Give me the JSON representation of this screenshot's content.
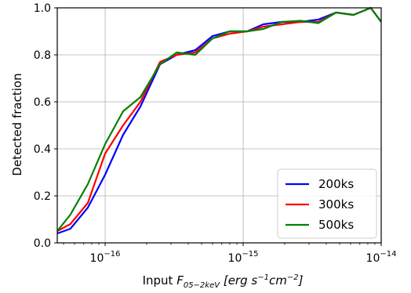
{
  "chart_data": {
    "type": "line",
    "xlabel_prefix": "Input ",
    "xlabel_var": "F",
    "xlabel_sub": "05−2keV",
    "xlabel_units": " [erg s",
    "xlabel_exp1": "−1",
    "xlabel_mid": "cm",
    "xlabel_exp2": "−2",
    "xlabel_end": "]",
    "ylabel": "Detected fraction",
    "xscale": "log",
    "xlim": [
      4.5e-17,
      1e-14
    ],
    "ylim": [
      0,
      1.0
    ],
    "grid": true,
    "legend_position": "lower-right",
    "xticks": [
      {
        "value": 1e-16,
        "base": "10",
        "exp": "−16"
      },
      {
        "value": 1e-15,
        "base": "10",
        "exp": "−15"
      },
      {
        "value": 1e-14,
        "base": "10",
        "exp": "−14"
      }
    ],
    "yticks": [
      {
        "value": 0.0,
        "label": "0.0"
      },
      {
        "value": 0.2,
        "label": "0.2"
      },
      {
        "value": 0.4,
        "label": "0.4"
      },
      {
        "value": 0.6,
        "label": "0.6"
      },
      {
        "value": 0.8,
        "label": "0.8"
      },
      {
        "value": 1.0,
        "label": "1.0"
      }
    ],
    "series": [
      {
        "name": "200ks",
        "color": "#0000ff",
        "x": [
          4.5e-17,
          5.6e-17,
          7.5e-17,
          1e-16,
          1.35e-16,
          1.8e-16,
          2.5e-16,
          3.3e-16,
          4.5e-16,
          6e-16,
          8e-16,
          1.07e-15,
          1.4e-15,
          1.9e-15,
          2.6e-15,
          3.5e-15,
          4.7e-15,
          6.3e-15,
          8.4e-15,
          1e-14
        ],
        "y": [
          0.04,
          0.06,
          0.15,
          0.29,
          0.46,
          0.58,
          0.76,
          0.8,
          0.82,
          0.88,
          0.9,
          0.9,
          0.93,
          0.94,
          0.94,
          0.95,
          0.98,
          0.97,
          1.0,
          0.94
        ]
      },
      {
        "name": "300ks",
        "color": "#ff0000",
        "x": [
          4.5e-17,
          5.6e-17,
          7.5e-17,
          1e-16,
          1.35e-16,
          1.8e-16,
          2.5e-16,
          3.3e-16,
          4.5e-16,
          6e-16,
          8e-16,
          1.07e-15,
          1.4e-15,
          1.9e-15,
          2.6e-15,
          3.5e-15,
          4.7e-15,
          6.3e-15,
          8.4e-15,
          1e-14
        ],
        "y": [
          0.05,
          0.08,
          0.17,
          0.38,
          0.5,
          0.6,
          0.77,
          0.8,
          0.81,
          0.87,
          0.89,
          0.9,
          0.92,
          0.93,
          0.94,
          0.94,
          0.98,
          0.97,
          1.0,
          0.94
        ]
      },
      {
        "name": "500ks",
        "color": "#008000",
        "x": [
          4.5e-17,
          5.6e-17,
          7.5e-17,
          1e-16,
          1.35e-16,
          1.8e-16,
          2.5e-16,
          3.3e-16,
          4.5e-16,
          6e-16,
          8e-16,
          1.07e-15,
          1.4e-15,
          1.9e-15,
          2.6e-15,
          3.5e-15,
          4.7e-15,
          6.3e-15,
          8.4e-15,
          1e-14
        ],
        "y": [
          0.05,
          0.12,
          0.25,
          0.42,
          0.56,
          0.62,
          0.76,
          0.81,
          0.8,
          0.87,
          0.9,
          0.9,
          0.91,
          0.94,
          0.945,
          0.935,
          0.98,
          0.97,
          1.0,
          0.94
        ]
      }
    ]
  }
}
